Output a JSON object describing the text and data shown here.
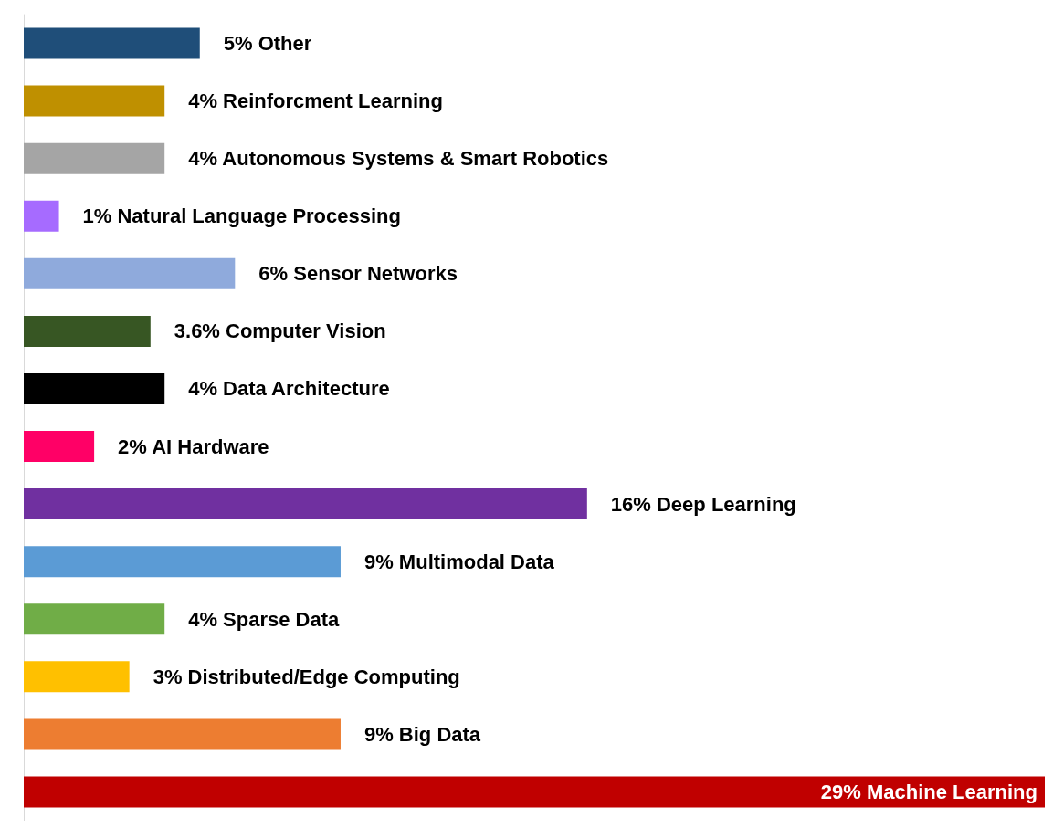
{
  "chart_data": {
    "type": "bar",
    "orientation": "horizontal",
    "categories": [
      "Other",
      "Reinforcment Learning",
      "Autonomous Systems & Smart Robotics",
      "Natural Language Processing",
      "Sensor Networks",
      "Computer Vision",
      "Data Architecture",
      "AI Hardware",
      "Deep Learning",
      "Multimodal Data",
      "Sparse Data",
      "Distributed/Edge Computing",
      "Big Data",
      "Machine Learning"
    ],
    "values": [
      5,
      4,
      4,
      1,
      6,
      3.6,
      4,
      2,
      16,
      9,
      4,
      3,
      9,
      29
    ],
    "value_labels": [
      "5%",
      "4%",
      "4%",
      "1%",
      "6%",
      "3.6%",
      "4%",
      "2%",
      "16%",
      "9%",
      "4%",
      "3%",
      "9%",
      "29%"
    ],
    "colors": [
      "#1f4e79",
      "#bf9000",
      "#a5a5a5",
      "#a66bff",
      "#8faadc",
      "#375623",
      "#000000",
      "#ff0066",
      "#7030a0",
      "#5b9bd5",
      "#70ad47",
      "#ffc000",
      "#ed7d31",
      "#c00000"
    ],
    "tick_labels": false
  }
}
